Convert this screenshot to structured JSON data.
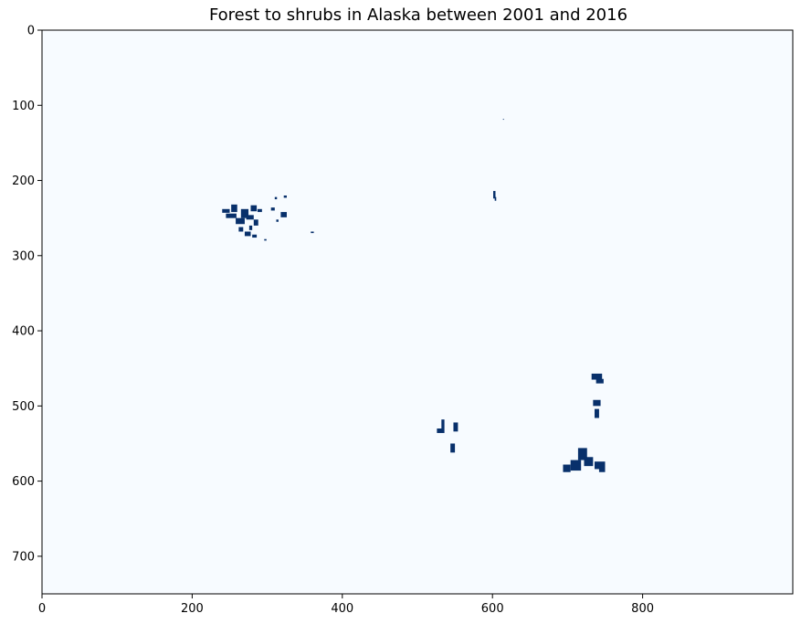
{
  "chart_data": {
    "type": "heatmap",
    "title": "Forest to shrubs in Alaska between 2001 and 2016",
    "xlabel": "",
    "ylabel": "",
    "colormap": "Blues",
    "background_color": "#f7fbff",
    "foreground_color": "#08306b",
    "xlim": [
      0,
      1000
    ],
    "ylim": [
      750,
      0
    ],
    "xticks": [
      0,
      200,
      400,
      600,
      800
    ],
    "xtick_labels": [
      "0",
      "200",
      "400",
      "600",
      "800"
    ],
    "yticks": [
      0,
      100,
      200,
      300,
      400,
      500,
      600,
      700
    ],
    "ytick_labels": [
      "0",
      "100",
      "200",
      "300",
      "400",
      "500",
      "600",
      "700"
    ],
    "grid": false,
    "change_patches": [
      {
        "x": 240,
        "y": 238,
        "w": 10,
        "h": 5
      },
      {
        "x": 245,
        "y": 244,
        "w": 14,
        "h": 6
      },
      {
        "x": 252,
        "y": 232,
        "w": 8,
        "h": 10
      },
      {
        "x": 258,
        "y": 250,
        "w": 12,
        "h": 8
      },
      {
        "x": 265,
        "y": 238,
        "w": 10,
        "h": 12
      },
      {
        "x": 272,
        "y": 246,
        "w": 10,
        "h": 6
      },
      {
        "x": 278,
        "y": 233,
        "w": 8,
        "h": 8
      },
      {
        "x": 282,
        "y": 252,
        "w": 6,
        "h": 8
      },
      {
        "x": 287,
        "y": 238,
        "w": 6,
        "h": 4
      },
      {
        "x": 262,
        "y": 262,
        "w": 6,
        "h": 6
      },
      {
        "x": 270,
        "y": 268,
        "w": 8,
        "h": 6
      },
      {
        "x": 280,
        "y": 272,
        "w": 6,
        "h": 4
      },
      {
        "x": 276,
        "y": 260,
        "w": 4,
        "h": 6
      },
      {
        "x": 296,
        "y": 278,
        "w": 3,
        "h": 2
      },
      {
        "x": 305,
        "y": 236,
        "w": 5,
        "h": 4
      },
      {
        "x": 310,
        "y": 222,
        "w": 3,
        "h": 3
      },
      {
        "x": 318,
        "y": 242,
        "w": 8,
        "h": 7
      },
      {
        "x": 322,
        "y": 220,
        "w": 4,
        "h": 3
      },
      {
        "x": 312,
        "y": 252,
        "w": 3,
        "h": 3
      },
      {
        "x": 358,
        "y": 268,
        "w": 4,
        "h": 2
      },
      {
        "x": 601,
        "y": 214,
        "w": 3,
        "h": 10
      },
      {
        "x": 603,
        "y": 222,
        "w": 2,
        "h": 5
      },
      {
        "x": 614,
        "y": 118,
        "w": 1,
        "h": 1
      },
      {
        "x": 532,
        "y": 518,
        "w": 4,
        "h": 12
      },
      {
        "x": 526,
        "y": 530,
        "w": 10,
        "h": 6
      },
      {
        "x": 548,
        "y": 522,
        "w": 6,
        "h": 12
      },
      {
        "x": 544,
        "y": 550,
        "w": 6,
        "h": 12
      },
      {
        "x": 732,
        "y": 457,
        "w": 14,
        "h": 8
      },
      {
        "x": 738,
        "y": 464,
        "w": 10,
        "h": 6
      },
      {
        "x": 734,
        "y": 492,
        "w": 10,
        "h": 8
      },
      {
        "x": 736,
        "y": 504,
        "w": 6,
        "h": 12
      },
      {
        "x": 694,
        "y": 578,
        "w": 10,
        "h": 10
      },
      {
        "x": 704,
        "y": 572,
        "w": 14,
        "h": 14
      },
      {
        "x": 714,
        "y": 556,
        "w": 12,
        "h": 16
      },
      {
        "x": 722,
        "y": 568,
        "w": 12,
        "h": 12
      },
      {
        "x": 736,
        "y": 574,
        "w": 14,
        "h": 10
      },
      {
        "x": 742,
        "y": 580,
        "w": 8,
        "h": 8
      }
    ]
  }
}
